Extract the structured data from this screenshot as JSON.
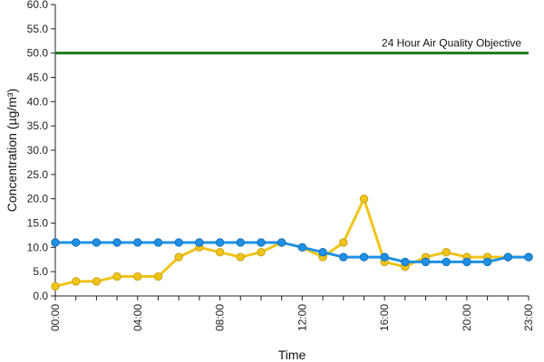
{
  "chart_data": {
    "type": "line",
    "title": "",
    "xlabel": "Time",
    "ylabel": "Concentration (µg/m³)",
    "ylim": [
      0,
      60
    ],
    "y_ticks": [
      "0.0",
      "5.0",
      "10.0",
      "15.0",
      "20.0",
      "25.0",
      "30.0",
      "35.0",
      "40.0",
      "45.0",
      "50.0",
      "55.0",
      "60.0"
    ],
    "x_tick_labels": [
      "00:00",
      "04:00",
      "08:00",
      "12:00",
      "16:00",
      "20:00",
      "23:00"
    ],
    "x_tick_hours": [
      0,
      4,
      8,
      12,
      16,
      20,
      23
    ],
    "x": [
      "00:00",
      "01:00",
      "02:00",
      "03:00",
      "04:00",
      "05:00",
      "06:00",
      "07:00",
      "08:00",
      "09:00",
      "10:00",
      "11:00",
      "12:00",
      "13:00",
      "14:00",
      "15:00",
      "16:00",
      "17:00",
      "18:00",
      "19:00",
      "20:00",
      "21:00",
      "22:00",
      "23:00"
    ],
    "series": [
      {
        "values": [
          2,
          3,
          3,
          4,
          4,
          4,
          8,
          10,
          9,
          8,
          9,
          11,
          10,
          8,
          11,
          20,
          7,
          6,
          8,
          9,
          8,
          8,
          8,
          8
        ],
        "color": "#f0c419",
        "marker_fill": "#f0c419",
        "marker_stroke": "#c9a41a"
      },
      {
        "values": [
          11,
          11,
          11,
          11,
          11,
          11,
          11,
          11,
          11,
          11,
          11,
          11,
          10,
          9,
          8,
          8,
          8,
          7,
          7,
          7,
          7,
          7,
          8,
          8
        ],
        "color": "#1e90e6",
        "marker_fill": "#1e90e6",
        "marker_stroke": "#1570b8"
      }
    ],
    "reference_line": {
      "value": 50,
      "label": "24 Hour Air Quality Objective",
      "color": "#1a7a1a"
    },
    "grid": false
  }
}
